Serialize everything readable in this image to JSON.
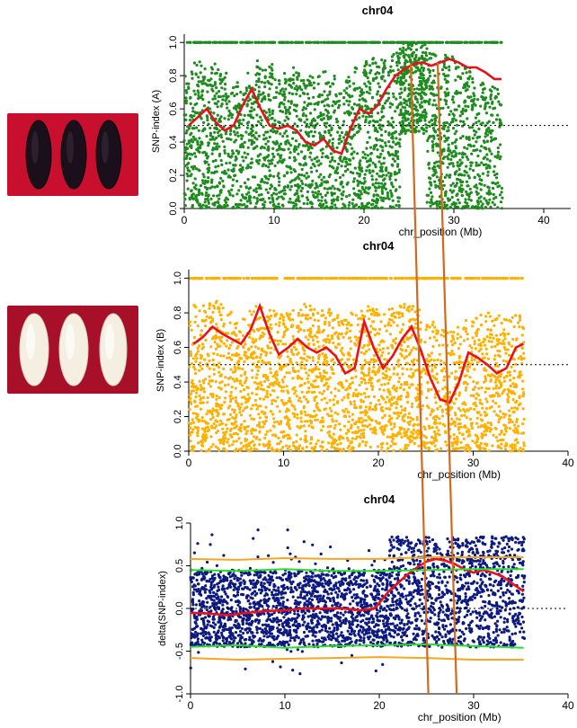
{
  "figure": {
    "photos": [
      {
        "name": "black-grain-photo",
        "grain_color": "black"
      },
      {
        "name": "white-grain-photo",
        "grain_color": "white"
      }
    ],
    "marker_color": "#d2691e",
    "marker_positions_mb": [
      25.2,
      28.2
    ]
  },
  "chart_data": [
    {
      "type": "scatter",
      "title": "chr04",
      "xlabel": "chr_position (Mb)",
      "ylabel": "SNP-index (A)",
      "xlim": [
        0,
        43
      ],
      "ylim": [
        0,
        1.05
      ],
      "xticks": [
        "0",
        "10",
        "20",
        "30",
        "40"
      ],
      "yticks": [
        "0.0",
        "0.2",
        "0.4",
        "0.6",
        "0.8",
        "1.0"
      ],
      "point_color": "#1e8b1e",
      "threshold": 0.5,
      "threshold_style": "dotted",
      "series": [
        {
          "type": "line",
          "color": "#e8101a",
          "x": [
            0.5,
            1.5,
            2.5,
            3.5,
            4.5,
            5.5,
            6.5,
            7.5,
            8.5,
            9.5,
            10.5,
            11.5,
            12.5,
            13.5,
            14.5,
            15.5,
            16.5,
            17.5,
            18.5,
            19.5,
            20.5,
            21.5,
            22.5,
            23.5,
            24.5,
            25.5,
            26.5,
            27.5,
            28.5,
            29.5,
            30.5,
            31.5,
            32.5,
            33.5,
            34.5,
            35.3
          ],
          "y": [
            0.5,
            0.55,
            0.6,
            0.52,
            0.47,
            0.5,
            0.62,
            0.72,
            0.6,
            0.5,
            0.48,
            0.5,
            0.47,
            0.4,
            0.38,
            0.42,
            0.35,
            0.33,
            0.48,
            0.6,
            0.57,
            0.62,
            0.72,
            0.8,
            0.84,
            0.87,
            0.88,
            0.86,
            0.88,
            0.9,
            0.88,
            0.85,
            0.85,
            0.82,
            0.78,
            0.78
          ]
        }
      ],
      "density": [
        0.55,
        0.7,
        0.6,
        0.65,
        0.55,
        0.45,
        0.4,
        0.55,
        0.7,
        0.65,
        0.5,
        0.55,
        0.6,
        0.45,
        0.5,
        0.55,
        0.5,
        0.4,
        0.55,
        0.6,
        0.7,
        0.75,
        0.7,
        0.8,
        0.9,
        0.95,
        0.85,
        0.8,
        0.7,
        0.75,
        0.7,
        0.6,
        0.5,
        0.45,
        0.4,
        0.25
      ]
    },
    {
      "type": "scatter",
      "title": "chr04",
      "xlabel": "chr_position (Mb)",
      "ylabel": "SNP-index (B)",
      "xlim": [
        0,
        40
      ],
      "ylim": [
        0,
        1.05
      ],
      "xticks": [
        "0",
        "10",
        "20",
        "30",
        "40"
      ],
      "yticks": [
        "0.0",
        "0.2",
        "0.4",
        "0.6",
        "0.8",
        "1.0"
      ],
      "point_color": "#ffb000",
      "threshold": 0.5,
      "threshold_style": "dotted",
      "series": [
        {
          "type": "line",
          "color": "#e8101a",
          "x": [
            0.5,
            1.5,
            2.5,
            3.5,
            4.5,
            5.5,
            6.5,
            7.5,
            8.5,
            9.5,
            10.5,
            11.5,
            12.5,
            13.5,
            14.5,
            15.5,
            16.5,
            17.5,
            18.5,
            19.5,
            20.5,
            21.5,
            22.5,
            23.5,
            24.5,
            25.5,
            26.5,
            27.5,
            28.5,
            29.5,
            30.5,
            31.5,
            32.5,
            33.5,
            34.5,
            35.3
          ],
          "y": [
            0.62,
            0.66,
            0.72,
            0.68,
            0.65,
            0.62,
            0.7,
            0.84,
            0.68,
            0.56,
            0.6,
            0.65,
            0.6,
            0.57,
            0.6,
            0.55,
            0.45,
            0.48,
            0.75,
            0.6,
            0.48,
            0.55,
            0.65,
            0.72,
            0.58,
            0.42,
            0.3,
            0.28,
            0.4,
            0.57,
            0.54,
            0.5,
            0.45,
            0.48,
            0.6,
            0.62
          ]
        }
      ],
      "density": [
        0.6,
        0.6,
        0.65,
        0.6,
        0.55,
        0.5,
        0.55,
        0.6,
        0.55,
        0.5,
        0.5,
        0.55,
        0.6,
        0.55,
        0.55,
        0.5,
        0.45,
        0.5,
        0.6,
        0.55,
        0.5,
        0.55,
        0.6,
        0.6,
        0.55,
        0.45,
        0.35,
        0.3,
        0.35,
        0.45,
        0.5,
        0.5,
        0.5,
        0.45,
        0.5,
        0.35
      ]
    },
    {
      "type": "scatter",
      "title": "chr04",
      "xlabel": "chr_position (Mb)",
      "ylabel": "delta(SNP-index)",
      "xlim": [
        0,
        40
      ],
      "ylim": [
        -1.0,
        1.0
      ],
      "xticks": [
        "0",
        "10",
        "20",
        "30",
        "40"
      ],
      "yticks": [
        "-1.0",
        "-0.5",
        "0.0",
        "0.5",
        "1.0"
      ],
      "point_color": "#0c1a80",
      "threshold": 0.0,
      "threshold_style": "dotted",
      "series": [
        {
          "type": "line",
          "color": "#e8101a",
          "x": [
            0,
            2,
            4,
            6,
            8,
            10,
            12,
            14,
            16,
            18,
            19.5,
            21,
            22,
            23,
            24,
            25,
            26,
            27,
            28,
            29,
            30,
            31,
            32,
            33,
            34,
            35.3
          ],
          "y": [
            -0.05,
            -0.06,
            -0.08,
            -0.05,
            -0.03,
            -0.02,
            0.0,
            0.0,
            0.0,
            -0.02,
            0.0,
            0.2,
            0.3,
            0.4,
            0.48,
            0.55,
            0.58,
            0.56,
            0.52,
            0.46,
            0.42,
            0.45,
            0.42,
            0.38,
            0.3,
            0.2
          ]
        },
        {
          "type": "line",
          "color": "#2bdc2b",
          "x": [
            0,
            5,
            10,
            15,
            20,
            25,
            30,
            35.3
          ],
          "y": [
            0.45,
            0.44,
            0.46,
            0.44,
            0.44,
            0.45,
            0.46,
            0.46
          ]
        },
        {
          "type": "line",
          "color": "#2bdc2b",
          "x": [
            0,
            5,
            10,
            15,
            20,
            25,
            30,
            35.3
          ],
          "y": [
            -0.45,
            -0.43,
            -0.46,
            -0.44,
            -0.43,
            -0.42,
            -0.44,
            -0.46
          ]
        },
        {
          "type": "line",
          "color": "#f5a623",
          "x": [
            0,
            5,
            10,
            15,
            20,
            25,
            30,
            35.3
          ],
          "y": [
            0.58,
            0.57,
            0.59,
            0.58,
            0.58,
            0.6,
            0.6,
            0.6
          ]
        },
        {
          "type": "line",
          "color": "#f5a623",
          "x": [
            0,
            5,
            10,
            15,
            20,
            25,
            30,
            35.3
          ],
          "y": [
            -0.58,
            -0.6,
            -0.59,
            -0.58,
            -0.57,
            -0.58,
            -0.6,
            -0.6
          ]
        }
      ],
      "density": [
        0.5,
        0.55,
        0.6,
        0.55,
        0.5,
        0.5,
        0.55,
        0.6,
        0.55,
        0.5,
        0.45,
        0.5,
        0.55,
        0.5,
        0.5,
        0.55,
        0.45,
        0.4,
        0.5,
        0.55,
        0.6,
        0.6,
        0.55,
        0.6,
        0.5,
        0.4,
        0.35,
        0.4,
        0.45,
        0.5,
        0.5,
        0.45,
        0.45,
        0.4,
        0.35,
        0.3
      ]
    }
  ]
}
